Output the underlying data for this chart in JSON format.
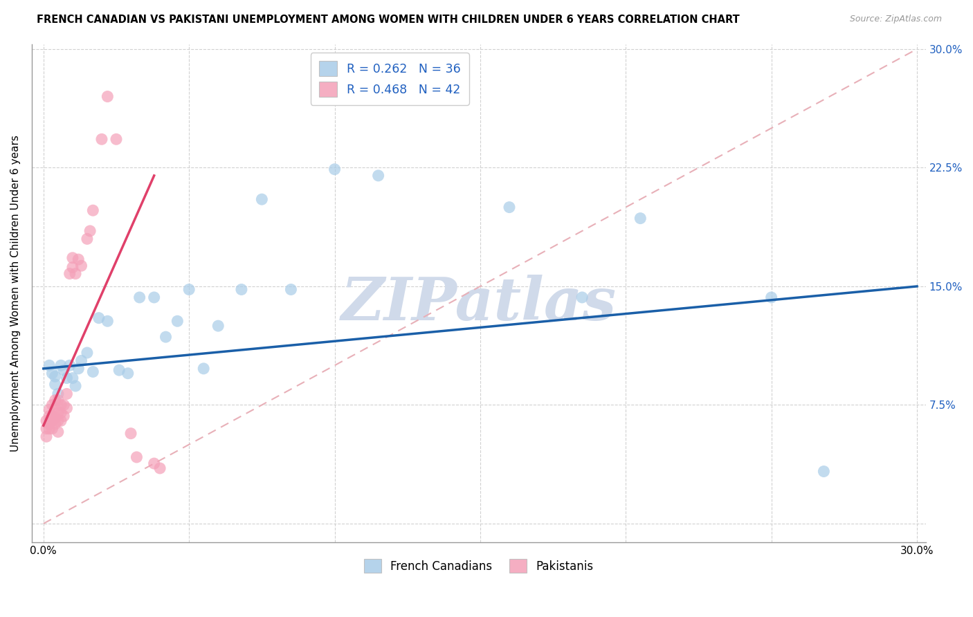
{
  "title": "FRENCH CANADIAN VS PAKISTANI UNEMPLOYMENT AMONG WOMEN WITH CHILDREN UNDER 6 YEARS CORRELATION CHART",
  "source": "Source: ZipAtlas.com",
  "ylabel": "Unemployment Among Women with Children Under 6 years",
  "xlim": [
    0.0,
    0.3
  ],
  "ylim": [
    0.0,
    0.3
  ],
  "ytick_positions": [
    0.0,
    0.075,
    0.15,
    0.225,
    0.3
  ],
  "ytick_labels": [
    "",
    "7.5%",
    "15.0%",
    "22.5%",
    "30.0%"
  ],
  "xtick_positions": [
    0.0,
    0.05,
    0.1,
    0.15,
    0.2,
    0.25,
    0.3
  ],
  "xtick_labels": [
    "0.0%",
    "",
    "",
    "",
    "",
    "",
    "30.0%"
  ],
  "R_blue": 0.262,
  "N_blue": 36,
  "R_pink": 0.468,
  "N_pink": 42,
  "blue_scatter_color": "#a8cce8",
  "pink_scatter_color": "#f4a0b8",
  "blue_line_color": "#1a5fa8",
  "pink_line_color": "#e0406a",
  "diagonal_color": "#e8b0b8",
  "legend_text_color": "#2060c0",
  "watermark_color": "#d0daea",
  "watermark": "ZIPatlas",
  "fc_x": [
    0.002,
    0.003,
    0.004,
    0.004,
    0.005,
    0.006,
    0.007,
    0.008,
    0.009,
    0.01,
    0.011,
    0.012,
    0.013,
    0.015,
    0.017,
    0.019,
    0.022,
    0.026,
    0.029,
    0.033,
    0.038,
    0.042,
    0.046,
    0.05,
    0.055,
    0.06,
    0.068,
    0.075,
    0.085,
    0.1,
    0.115,
    0.16,
    0.185,
    0.205,
    0.25,
    0.268
  ],
  "fc_y": [
    0.1,
    0.095,
    0.093,
    0.088,
    0.082,
    0.1,
    0.097,
    0.092,
    0.1,
    0.092,
    0.087,
    0.098,
    0.103,
    0.108,
    0.096,
    0.13,
    0.128,
    0.097,
    0.095,
    0.143,
    0.143,
    0.118,
    0.128,
    0.148,
    0.098,
    0.125,
    0.148,
    0.205,
    0.148,
    0.224,
    0.22,
    0.2,
    0.143,
    0.193,
    0.143,
    0.033
  ],
  "pk_x": [
    0.001,
    0.001,
    0.001,
    0.002,
    0.002,
    0.002,
    0.002,
    0.003,
    0.003,
    0.003,
    0.003,
    0.004,
    0.004,
    0.004,
    0.004,
    0.005,
    0.005,
    0.005,
    0.005,
    0.006,
    0.006,
    0.006,
    0.007,
    0.007,
    0.008,
    0.008,
    0.009,
    0.01,
    0.01,
    0.011,
    0.012,
    0.013,
    0.015,
    0.016,
    0.017,
    0.02,
    0.022,
    0.025,
    0.03,
    0.032,
    0.038,
    0.04
  ],
  "pk_y": [
    0.065,
    0.06,
    0.055,
    0.06,
    0.063,
    0.068,
    0.072,
    0.06,
    0.065,
    0.068,
    0.075,
    0.063,
    0.067,
    0.073,
    0.078,
    0.058,
    0.065,
    0.07,
    0.078,
    0.065,
    0.07,
    0.075,
    0.068,
    0.075,
    0.073,
    0.082,
    0.158,
    0.162,
    0.168,
    0.158,
    0.167,
    0.163,
    0.18,
    0.185,
    0.198,
    0.243,
    0.27,
    0.243,
    0.057,
    0.042,
    0.038,
    0.035
  ],
  "blue_line_x0": 0.0,
  "blue_line_y0": 0.098,
  "blue_line_x1": 0.3,
  "blue_line_y1": 0.15,
  "pink_line_x0": 0.0,
  "pink_line_y0": 0.062,
  "pink_line_x1": 0.038,
  "pink_line_y1": 0.22
}
